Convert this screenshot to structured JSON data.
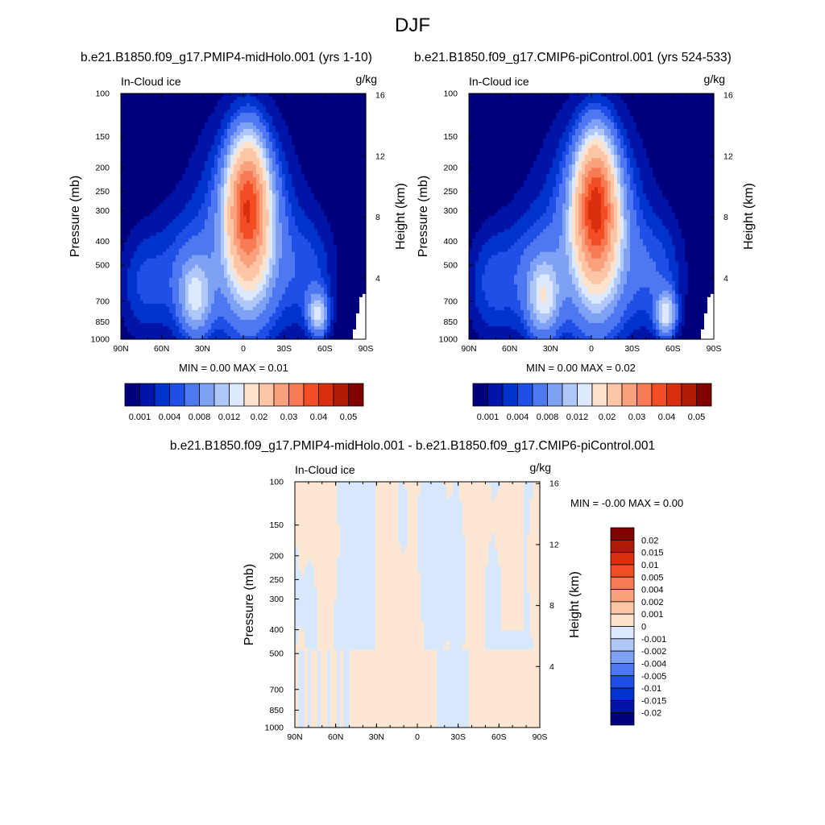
{
  "main_title": "DJF",
  "palette": {
    "full": [
      "#00007f",
      "#0014a8",
      "#0033cc",
      "#1f4fe6",
      "#4d78f0",
      "#7fa1f5",
      "#b0c8f9",
      "#dde9fe",
      "#fde2cd",
      "#fcc5a6",
      "#fba07c",
      "#f87a53",
      "#f24d24",
      "#d8300d",
      "#b01b07",
      "#800000"
    ],
    "full_labels": [
      "0.001",
      "0.004",
      "0.008",
      "0.012",
      "0.02",
      "0.03",
      "0.04",
      "0.05"
    ],
    "diff": [
      "#00007f",
      "#0014a8",
      "#0033cc",
      "#1f4fe6",
      "#4d78f0",
      "#7fa1f5",
      "#b0c8f9",
      "#dde9fe",
      "#fde2cd",
      "#fcc5a6",
      "#fba07c",
      "#f87a53",
      "#f24d24",
      "#d8300d",
      "#b01b07",
      "#800000"
    ],
    "diff_labels": [
      "-0.02",
      "-0.015",
      "-0.01",
      "-0.005",
      "-0.004",
      "-0.002",
      "-0.001",
      "0",
      "0.001",
      "0.002",
      "0.004",
      "0.005",
      "0.01",
      "0.015",
      "0.02"
    ]
  },
  "chart_data": [
    {
      "type": "heatmap",
      "title": "b.e21.B1850.f09_g17.PMIP4-midHolo.001 (yrs 1-10)",
      "variable_label": "In-Cloud ice",
      "units_label": "g/kg",
      "xlabel": "",
      "ylabel": "Pressure (mb)",
      "y2label": "Height (km)",
      "x_ticks": [
        "90N",
        "60N",
        "30N",
        "0",
        "30S",
        "60S",
        "90S"
      ],
      "y_ticks": [
        "100",
        "150",
        "200",
        "250",
        "300",
        "400",
        "500",
        "700",
        "850",
        "1000"
      ],
      "y2_ticks": [
        "16",
        "12",
        "8",
        "4"
      ],
      "ylim": [
        1000,
        100
      ],
      "stats": {
        "min_label": "MIN =",
        "min": "0.00",
        "max_label": "MAX =",
        "max": "0.01"
      },
      "colorbar_labels": [
        "0.001",
        "0.004",
        "0.008",
        "0.012",
        "0.02",
        "0.03",
        "0.04",
        "0.05"
      ],
      "notable_features": [
        "deep convective ice maximum near equator (5N-10S) peaking ~250 mb",
        "secondary maximum ~35N at 700 mb",
        "secondary maximum ~55S at 800 mb"
      ]
    },
    {
      "type": "heatmap",
      "title": "b.e21.B1850.f09_g17.CMIP6-piControl.001 (yrs 524-533)",
      "variable_label": "In-Cloud ice",
      "units_label": "g/kg",
      "xlabel": "",
      "ylabel": "Pressure (mb)",
      "y2label": "Height (km)",
      "x_ticks": [
        "90N",
        "60N",
        "30N",
        "0",
        "30S",
        "60S",
        "90S"
      ],
      "y_ticks": [
        "100",
        "150",
        "200",
        "250",
        "300",
        "400",
        "500",
        "700",
        "850",
        "1000"
      ],
      "y2_ticks": [
        "16",
        "12",
        "8",
        "4"
      ],
      "ylim": [
        1000,
        100
      ],
      "stats": {
        "min_label": "MIN =",
        "min": "0.00",
        "max_label": "MAX =",
        "max": "0.02"
      },
      "colorbar_labels": [
        "0.001",
        "0.004",
        "0.008",
        "0.012",
        "0.02",
        "0.03",
        "0.04",
        "0.05"
      ]
    },
    {
      "type": "heatmap",
      "title": "b.e21.B1850.f09_g17.PMIP4-midHolo.001 - b.e21.B1850.f09_g17.CMIP6-piControl.001",
      "variable_label": "In-Cloud ice",
      "units_label": "g/kg",
      "xlabel": "",
      "ylabel": "Pressure (mb)",
      "y2label": "Height (km)",
      "x_ticks": [
        "90N",
        "60N",
        "30N",
        "0",
        "30S",
        "60S",
        "90S"
      ],
      "y_ticks": [
        "100",
        "150",
        "200",
        "250",
        "300",
        "400",
        "500",
        "700",
        "850",
        "1000"
      ],
      "y2_ticks": [
        "16",
        "12",
        "8",
        "4"
      ],
      "ylim": [
        1000,
        100
      ],
      "stats": {
        "min_label": "MIN =",
        "min": "-0.00",
        "max_label": "MAX =",
        "max": "0.00"
      },
      "colorbar_labels": [
        "-0.02",
        "-0.015",
        "-0.01",
        "-0.005",
        "-0.004",
        "-0.002",
        "-0.001",
        "0",
        "0.001",
        "0.002",
        "0.004",
        "0.005",
        "0.01",
        "0.015",
        "0.02"
      ]
    }
  ]
}
